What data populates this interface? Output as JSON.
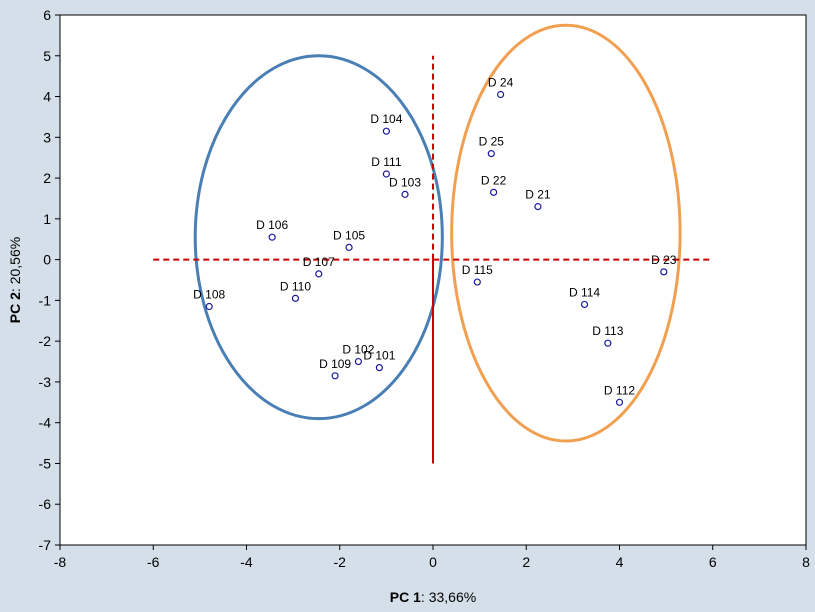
{
  "chart_data": {
    "type": "scatter",
    "xlabel": {
      "bold": "PC 1",
      "rest": ": 33,66%"
    },
    "ylabel": {
      "bold": "PC 2",
      "rest": ": 20,56%"
    },
    "xlim": [
      -8,
      8
    ],
    "ylim": [
      -7,
      6
    ],
    "xticks": [
      -8,
      -6,
      -4,
      -2,
      0,
      2,
      4,
      6,
      8
    ],
    "yticks": [
      -7,
      -6,
      -5,
      -4,
      -3,
      -2,
      -1,
      0,
      1,
      2,
      3,
      4,
      5,
      6
    ],
    "grid": false,
    "points": [
      {
        "label": "D 24",
        "x": 1.45,
        "y": 4.05
      },
      {
        "label": "D 25",
        "x": 1.25,
        "y": 2.6
      },
      {
        "label": "D 22",
        "x": 1.3,
        "y": 1.65
      },
      {
        "label": "D 21",
        "x": 2.25,
        "y": 1.3
      },
      {
        "label": "D 23",
        "x": 4.95,
        "y": -0.3
      },
      {
        "label": "D 115",
        "x": 0.95,
        "y": -0.55
      },
      {
        "label": "D 114",
        "x": 3.25,
        "y": -1.1
      },
      {
        "label": "D 113",
        "x": 3.75,
        "y": -2.05
      },
      {
        "label": "D 112",
        "x": 4.0,
        "y": -3.5
      },
      {
        "label": "D 104",
        "x": -1.0,
        "y": 3.15
      },
      {
        "label": "D 111",
        "x": -1.0,
        "y": 2.1
      },
      {
        "label": "D 103",
        "x": -0.6,
        "y": 1.6
      },
      {
        "label": "D 106",
        "x": -3.45,
        "y": 0.55
      },
      {
        "label": "D 105",
        "x": -1.8,
        "y": 0.3
      },
      {
        "label": "D 107",
        "x": -2.45,
        "y": -0.35
      },
      {
        "label": "D 110",
        "x": -2.95,
        "y": -0.95
      },
      {
        "label": "D 108",
        "x": -4.8,
        "y": -1.15
      },
      {
        "label": "D 102",
        "x": -1.6,
        "y": -2.5
      },
      {
        "label": "D 109",
        "x": -2.1,
        "y": -2.85
      },
      {
        "label": "D 101",
        "x": -1.15,
        "y": -2.65
      }
    ],
    "ellipses": [
      {
        "name": "left-group",
        "center": [
          -2.45,
          0.55
        ],
        "radii": [
          2.65,
          4.45
        ],
        "color": "#4a7fb5"
      },
      {
        "name": "right-group",
        "center": [
          2.85,
          0.65
        ],
        "radii": [
          2.45,
          5.1
        ],
        "color": "#f0a050"
      }
    ],
    "reference_lines": [
      {
        "orientation": "horizontal",
        "value": 0,
        "range": [
          -6,
          6
        ],
        "color": "#cc0000",
        "style": "dashed"
      },
      {
        "orientation": "vertical",
        "value": 0,
        "range": [
          0,
          5
        ],
        "color": "#cc0000",
        "style": "dashed"
      },
      {
        "orientation": "vertical",
        "value": 0,
        "range": [
          -5,
          0
        ],
        "color": "#cc0000",
        "style": "solid"
      }
    ],
    "colors": {
      "background": "#d4dfe9",
      "plot_background": "#ffffff",
      "point_stroke": "#1a1aa0"
    }
  }
}
